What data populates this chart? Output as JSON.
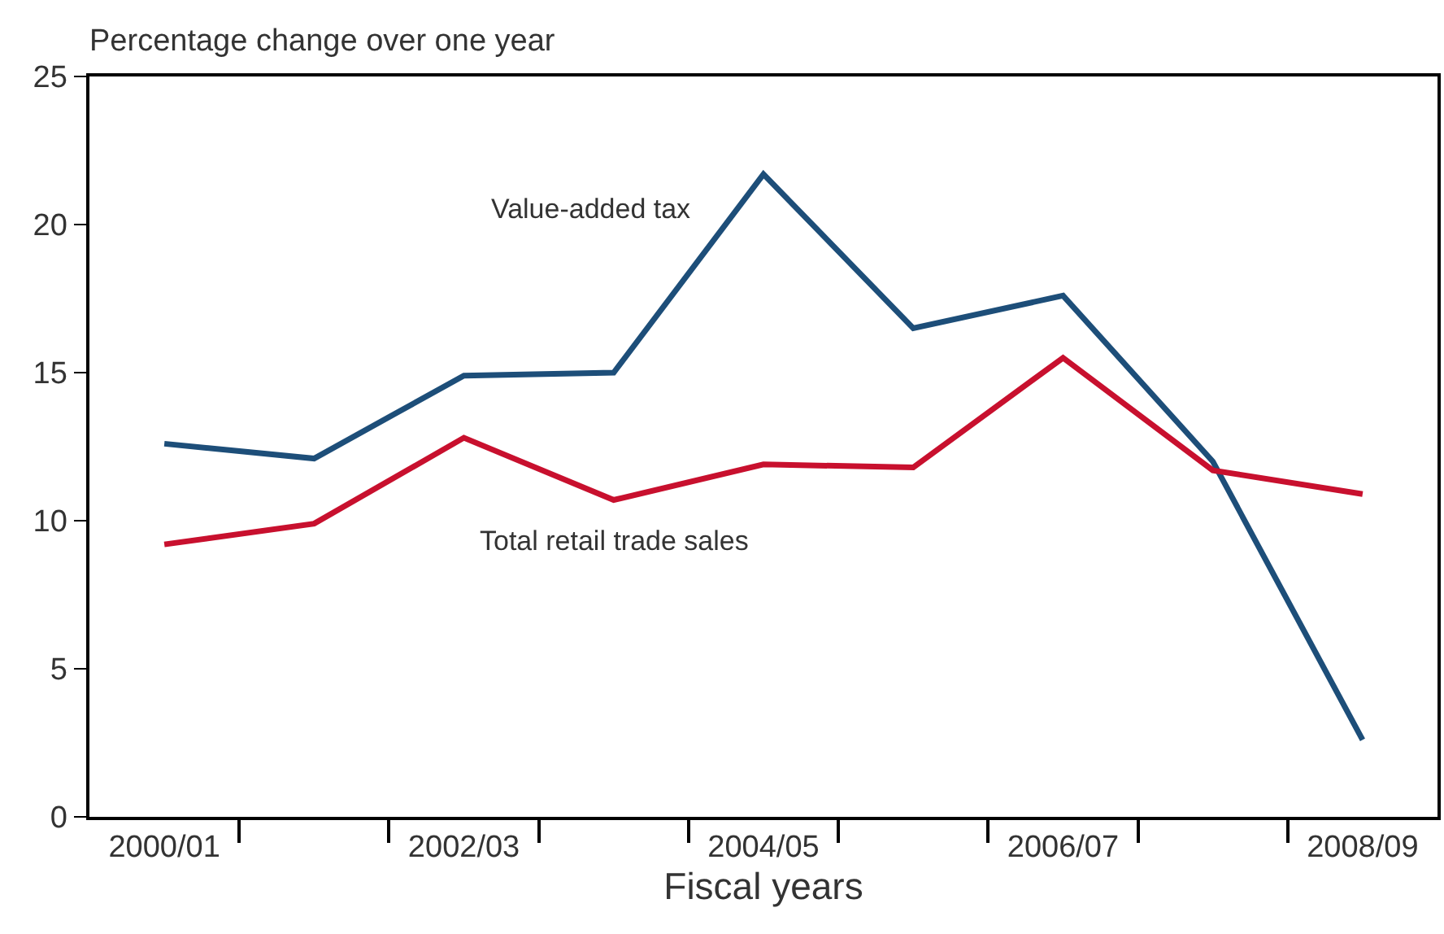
{
  "chart_data": {
    "type": "line",
    "ylabel": "Percentage change over one year",
    "xlabel": "Fiscal years",
    "categories": [
      "2000/01",
      null,
      "2002/03",
      null,
      "2004/05",
      null,
      "2006/07",
      null,
      "2008/09"
    ],
    "series": [
      {
        "name": "Value-added tax",
        "color": "#1d4e79",
        "values": [
          12.6,
          12.1,
          14.9,
          15.0,
          21.7,
          16.5,
          17.6,
          12.0,
          2.6
        ]
      },
      {
        "name": "Total retail trade sales",
        "color": "#c8102e",
        "values": [
          9.2,
          9.9,
          12.8,
          10.7,
          11.9,
          11.8,
          15.5,
          11.7,
          10.9
        ]
      }
    ],
    "ylim": [
      0,
      25
    ],
    "yticks": [
      0,
      5,
      10,
      15,
      20,
      25
    ],
    "grid": false,
    "legend": false,
    "marker": "none",
    "line_style": "solid"
  }
}
